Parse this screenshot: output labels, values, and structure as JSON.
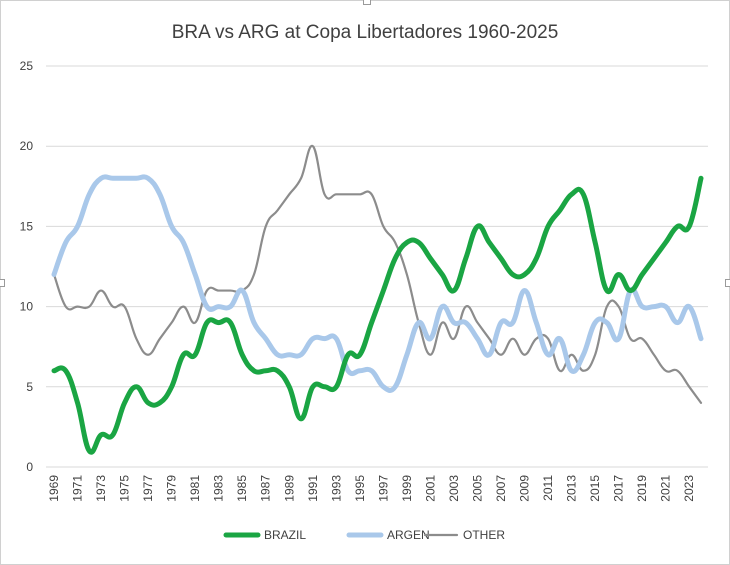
{
  "chart_data": {
    "type": "line",
    "title": "BRA vs ARG at Copa Libertadores 1960-2025",
    "xlabel": "",
    "ylabel": "",
    "ylim": [
      0,
      25
    ],
    "yticks": [
      0,
      5,
      10,
      15,
      20,
      25
    ],
    "grid": true,
    "legend_position": "bottom",
    "x": [
      1969,
      1970,
      1971,
      1972,
      1973,
      1974,
      1975,
      1976,
      1977,
      1978,
      1979,
      1980,
      1981,
      1982,
      1983,
      1984,
      1985,
      1986,
      1987,
      1988,
      1989,
      1990,
      1991,
      1992,
      1993,
      1994,
      1995,
      1996,
      1997,
      1998,
      1999,
      2000,
      2001,
      2002,
      2003,
      2004,
      2005,
      2006,
      2007,
      2008,
      2009,
      2010,
      2011,
      2012,
      2013,
      2014,
      2015,
      2016,
      2017,
      2018,
      2019,
      2020,
      2021,
      2022,
      2023,
      2024
    ],
    "x_tick_labels": [
      "1969",
      "1971",
      "1973",
      "1975",
      "1977",
      "1979",
      "1981",
      "1983",
      "1985",
      "1987",
      "1989",
      "1991",
      "1993",
      "1995",
      "1997",
      "1999",
      "2001",
      "2003",
      "2005",
      "2007",
      "2009",
      "2011",
      "2013",
      "2015",
      "2017",
      "2019",
      "2021",
      "2023"
    ],
    "series": [
      {
        "name": "BRAZIL",
        "color": "#1aa543",
        "values": [
          6,
          6,
          4,
          1,
          2,
          2,
          4,
          5,
          4,
          4,
          5,
          7,
          7,
          9,
          9,
          9,
          7,
          6,
          6,
          6,
          5,
          3,
          5,
          5,
          5,
          7,
          7,
          9,
          11,
          13,
          14,
          14,
          13,
          12,
          11,
          13,
          15,
          14,
          13,
          12,
          12,
          13,
          15,
          16,
          17,
          17,
          14,
          11,
          12,
          11,
          12,
          13,
          14,
          15,
          15,
          18
        ]
      },
      {
        "name": "ARGEN",
        "color": "#a9c8ea",
        "values": [
          12,
          14,
          15,
          17,
          18,
          18,
          18,
          18,
          18,
          17,
          15,
          14,
          12,
          10,
          10,
          10,
          11,
          9,
          8,
          7,
          7,
          7,
          8,
          8,
          8,
          6,
          6,
          6,
          5,
          5,
          7,
          9,
          8,
          10,
          9,
          9,
          8,
          7,
          9,
          9,
          11,
          9,
          7,
          8,
          6,
          7,
          9,
          9,
          8,
          11,
          10,
          10,
          10,
          9,
          10,
          8
        ]
      },
      {
        "name": "OTHER",
        "color": "#8c8c8c",
        "values": [
          12,
          10,
          10,
          10,
          11,
          10,
          10,
          8,
          7,
          8,
          9,
          10,
          9,
          11,
          11,
          11,
          11,
          12,
          15,
          16,
          17,
          18,
          20,
          17,
          17,
          17,
          17,
          17,
          15,
          14,
          12,
          9,
          7,
          9,
          8,
          10,
          9,
          8,
          7,
          8,
          7,
          8,
          8,
          6,
          7,
          6,
          7,
          10,
          10,
          8,
          8,
          7,
          6,
          6,
          5,
          4
        ]
      }
    ]
  }
}
